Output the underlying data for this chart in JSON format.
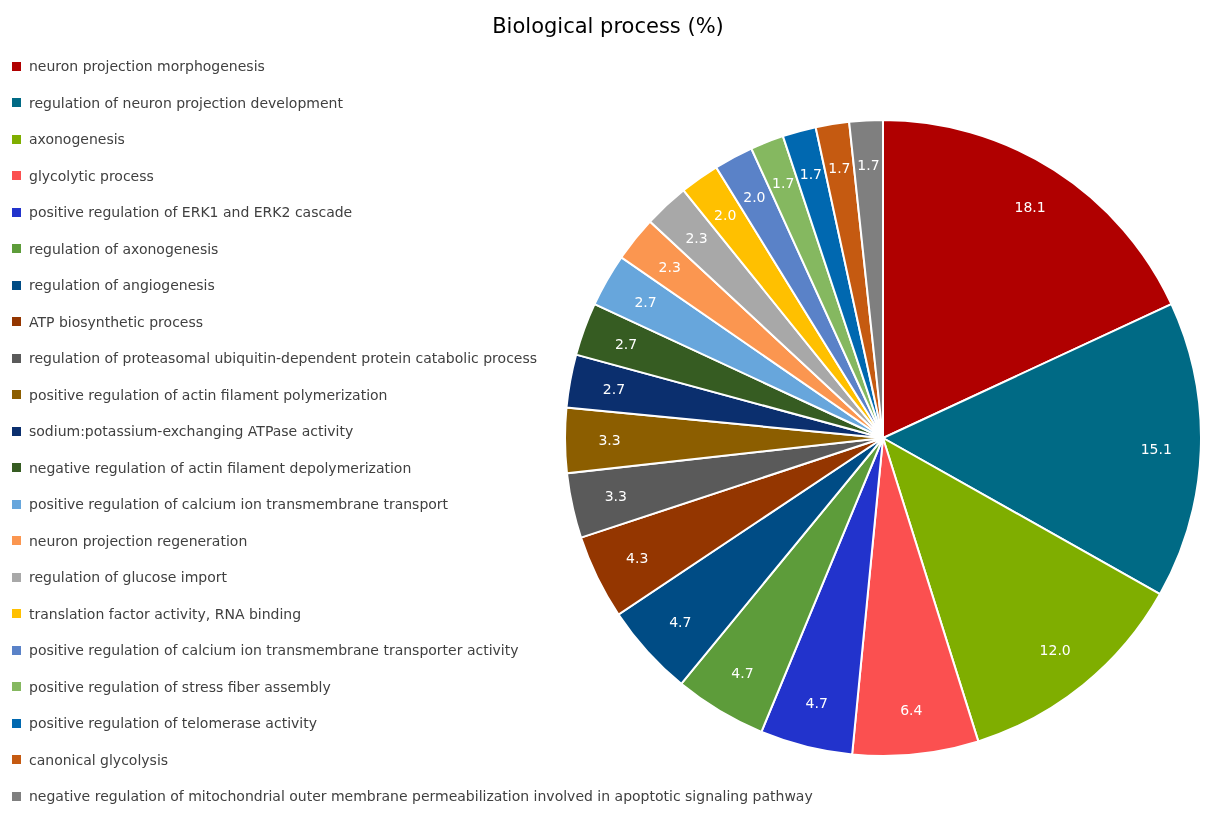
{
  "chart_data": {
    "type": "pie",
    "title": "Biological process (%)",
    "categories": [
      "neuron projection morphogenesis",
      "regulation of neuron projection development",
      "axonogenesis",
      "glycolytic process",
      "positive regulation of ERK1 and ERK2 cascade",
      "regulation of axonogenesis",
      "regulation of angiogenesis",
      "ATP biosynthetic process",
      "regulation of proteasomal ubiquitin-dependent protein catabolic process",
      "positive regulation of actin filament polymerization",
      "sodium:potassium-exchanging ATPase activity",
      "negative regulation of actin filament depolymerization",
      "positive regulation of calcium ion transmembrane transport",
      "neuron projection regeneration",
      "regulation of glucose import",
      "translation factor activity, RNA binding",
      "positive regulation of calcium ion transmembrane transporter activity",
      "positive regulation of stress fiber assembly",
      "positive regulation of telomerase activity",
      "canonical glycolysis",
      "negative regulation of mitochondrial outer membrane permeabilization involved in apoptotic signaling pathway"
    ],
    "values": [
      18.1,
      15.1,
      12.0,
      6.4,
      4.7,
      4.7,
      4.7,
      4.3,
      3.3,
      3.3,
      2.7,
      2.7,
      2.7,
      2.3,
      2.3,
      2.0,
      2.0,
      1.7,
      1.7,
      1.7,
      1.7
    ],
    "value_labels": [
      "18.1",
      "15.1",
      "12.0",
      "6.4",
      "4.7",
      "4.7",
      "4.7",
      "4.3",
      "3.3",
      "3.3",
      "2.7",
      "2.7",
      "2.7",
      "2.3",
      "2.3",
      "2.0",
      "2.0",
      "1.7",
      "1.7",
      "1.7",
      "1.7"
    ],
    "colors": [
      "#b00000",
      "#006a85",
      "#7fae00",
      "#fb5050",
      "#2233cc",
      "#5d9c3a",
      "#004c85",
      "#943600",
      "#5a5a5a",
      "#8c5e00",
      "#0b2f6e",
      "#365c22",
      "#67a6dc",
      "#fb9650",
      "#a8a8a8",
      "#ffc000",
      "#5a82c8",
      "#85b860",
      "#0068b0",
      "#c55a11",
      "#7f7f7f"
    ],
    "legend": "left"
  }
}
